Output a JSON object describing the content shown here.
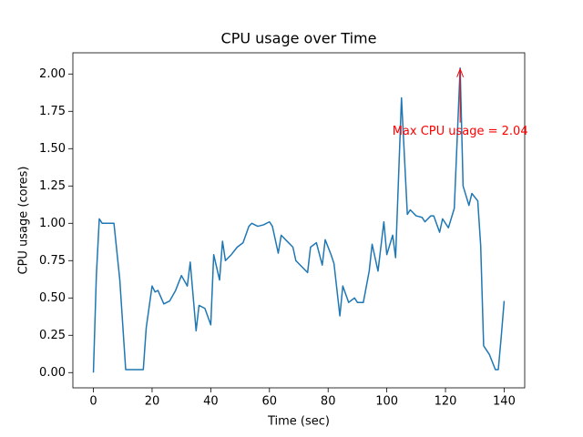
{
  "chart_data": {
    "type": "line",
    "title": "CPU usage over Time",
    "x_label": "Time (sec)",
    "y_label": "CPU usage (cores)",
    "x": [
      0,
      1,
      2,
      3,
      5,
      7,
      9,
      11,
      13,
      15,
      17,
      18,
      20,
      21,
      22,
      24,
      26,
      28,
      30,
      32,
      33,
      35,
      36,
      38,
      40,
      41,
      43,
      44,
      45,
      47,
      49,
      51,
      53,
      54,
      56,
      58,
      60,
      61,
      63,
      64,
      66,
      68,
      69,
      71,
      73,
      74,
      76,
      78,
      79,
      81,
      82,
      84,
      85,
      87,
      89,
      90,
      92,
      94,
      95,
      97,
      99,
      100,
      102,
      103,
      105,
      107,
      108,
      110,
      112,
      113,
      115,
      116,
      118,
      119,
      121,
      123,
      125,
      126,
      128,
      129,
      131,
      132,
      133,
      135,
      137,
      138,
      139,
      140
    ],
    "values": [
      0,
      0.65,
      1.03,
      1.0,
      1.0,
      1.0,
      0.62,
      0.02,
      0.02,
      0.02,
      0.02,
      0.3,
      0.58,
      0.54,
      0.55,
      0.46,
      0.48,
      0.55,
      0.65,
      0.58,
      0.74,
      0.28,
      0.45,
      0.43,
      0.32,
      0.79,
      0.62,
      0.88,
      0.75,
      0.79,
      0.84,
      0.87,
      0.98,
      1.0,
      0.98,
      0.99,
      1.01,
      0.98,
      0.8,
      0.92,
      0.88,
      0.84,
      0.75,
      0.71,
      0.67,
      0.84,
      0.87,
      0.72,
      0.89,
      0.79,
      0.73,
      0.38,
      0.58,
      0.47,
      0.5,
      0.47,
      0.47,
      0.68,
      0.86,
      0.68,
      1.01,
      0.79,
      0.92,
      0.77,
      1.84,
      1.06,
      1.09,
      1.05,
      1.04,
      1.01,
      1.05,
      1.05,
      0.94,
      1.03,
      0.97,
      1.1,
      2.04,
      1.25,
      1.12,
      1.2,
      1.15,
      0.85,
      0.18,
      0.12,
      0.02,
      0.02,
      0.24,
      0.48
    ],
    "color": "#1f77b4",
    "annotation": {
      "text": "Max CPU usage = 2.04",
      "color": "#ff0000"
    },
    "xlim": [
      -7,
      147
    ],
    "xticks": [
      0,
      20,
      40,
      60,
      80,
      100,
      120,
      140
    ],
    "ylim": [
      -0.102,
      2.142
    ],
    "yticks": [
      {
        "value": 0,
        "label": "0.00"
      },
      0.25,
      {
        "value": 0.5,
        "label": "0.50"
      },
      0.75,
      {
        "value": 1,
        "label": "1.00"
      },
      1.25,
      {
        "value": 1.5,
        "label": "1.50"
      },
      1.75,
      {
        "value": 2,
        "label": "2.00"
      }
    ]
  }
}
